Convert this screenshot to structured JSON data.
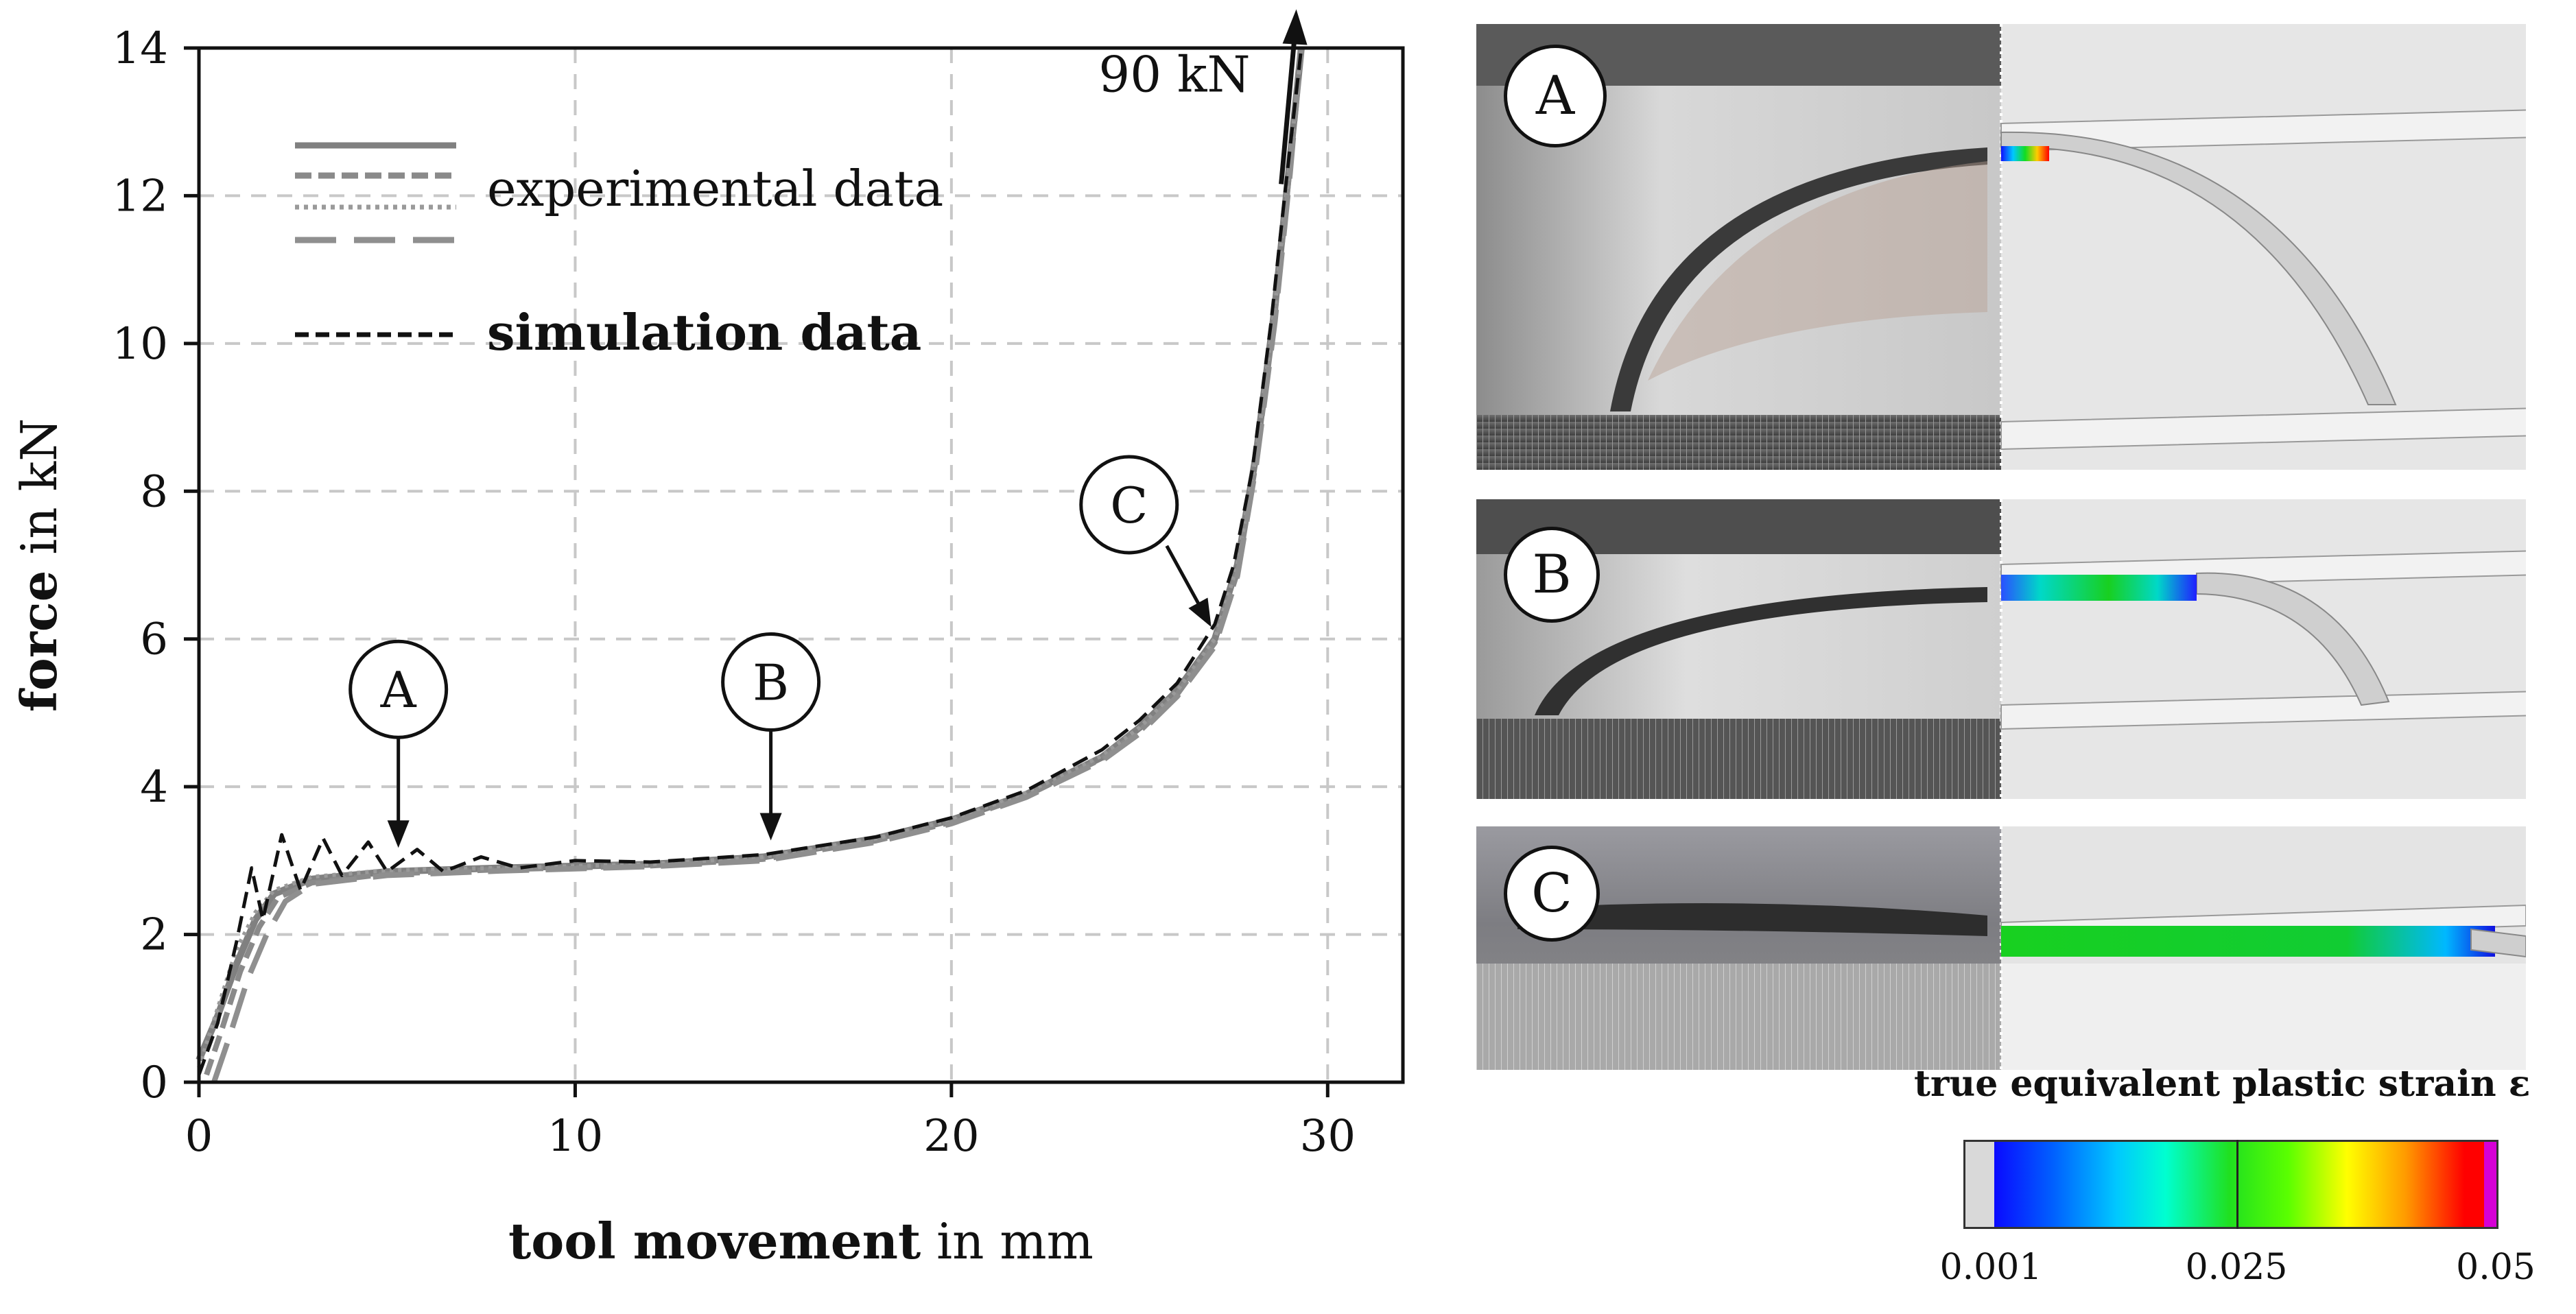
{
  "chart_data": {
    "type": "line",
    "xlabel_bold": "tool movement",
    "xlabel_rest": " in mm",
    "ylabel_bold": "force",
    "ylabel_rest": " in kN",
    "xlim": [
      0,
      32
    ],
    "ylim": [
      0,
      14
    ],
    "x_ticks": [
      0,
      10,
      20,
      30
    ],
    "y_ticks": [
      0,
      2,
      4,
      6,
      8,
      10,
      12,
      14
    ],
    "grid": true,
    "legend": {
      "placement": "top-left",
      "experimental_label": "experimental data",
      "simulation_label": "simulation data"
    },
    "series": [
      {
        "name": "experimental data",
        "style": "solid",
        "color": "#808080",
        "points": [
          [
            0,
            0.3
          ],
          [
            0.5,
            0.9
          ],
          [
            1,
            1.6
          ],
          [
            1.5,
            2.2
          ],
          [
            2,
            2.55
          ],
          [
            3,
            2.75
          ],
          [
            5,
            2.85
          ],
          [
            8,
            2.9
          ],
          [
            12,
            2.95
          ],
          [
            15,
            3.05
          ],
          [
            18,
            3.3
          ],
          [
            20,
            3.55
          ],
          [
            22,
            3.9
          ],
          [
            24,
            4.4
          ],
          [
            25,
            4.8
          ],
          [
            26,
            5.3
          ],
          [
            27,
            6.0
          ],
          [
            27.6,
            7.0
          ],
          [
            28.1,
            8.5
          ],
          [
            28.6,
            10.5
          ],
          [
            29,
            12.5
          ],
          [
            29.3,
            14.0
          ]
        ]
      },
      {
        "name": "experimental data",
        "style": "dashed",
        "color": "#8a8a8a",
        "points": [
          [
            0.2,
            0.1
          ],
          [
            0.6,
            0.7
          ],
          [
            1.1,
            1.5
          ],
          [
            1.6,
            2.1
          ],
          [
            2.1,
            2.5
          ],
          [
            3,
            2.7
          ],
          [
            5,
            2.82
          ],
          [
            8,
            2.88
          ],
          [
            12,
            2.93
          ],
          [
            15,
            3.02
          ],
          [
            18,
            3.27
          ],
          [
            20,
            3.52
          ],
          [
            22,
            3.88
          ],
          [
            24,
            4.38
          ],
          [
            25,
            4.75
          ],
          [
            26,
            5.25
          ],
          [
            27,
            5.95
          ],
          [
            27.6,
            6.9
          ],
          [
            28.1,
            8.4
          ],
          [
            28.6,
            10.4
          ],
          [
            29,
            12.4
          ],
          [
            29.3,
            14.0
          ]
        ]
      },
      {
        "name": "experimental data",
        "style": "dotted",
        "color": "#9a9a9a",
        "points": [
          [
            0,
            0.2
          ],
          [
            0.5,
            1.0
          ],
          [
            1,
            1.8
          ],
          [
            1.5,
            2.3
          ],
          [
            2,
            2.6
          ],
          [
            3,
            2.78
          ],
          [
            5,
            2.87
          ],
          [
            8,
            2.9
          ],
          [
            12,
            2.95
          ],
          [
            15,
            3.05
          ],
          [
            18,
            3.3
          ],
          [
            20,
            3.55
          ],
          [
            22,
            3.92
          ],
          [
            24,
            4.42
          ],
          [
            25,
            4.8
          ],
          [
            26,
            5.3
          ],
          [
            27,
            6.0
          ],
          [
            27.6,
            7.0
          ],
          [
            28.1,
            8.5
          ],
          [
            28.6,
            10.5
          ],
          [
            29,
            12.5
          ],
          [
            29.3,
            14.0
          ]
        ]
      },
      {
        "name": "experimental data",
        "style": "longdash",
        "color": "#8f8f8f",
        "points": [
          [
            0.4,
            0.0
          ],
          [
            0.8,
            0.6
          ],
          [
            1.3,
            1.4
          ],
          [
            1.8,
            2.0
          ],
          [
            2.3,
            2.45
          ],
          [
            3,
            2.68
          ],
          [
            5,
            2.8
          ],
          [
            8,
            2.86
          ],
          [
            12,
            2.92
          ],
          [
            15,
            3.0
          ],
          [
            18,
            3.25
          ],
          [
            20,
            3.5
          ],
          [
            22,
            3.86
          ],
          [
            24,
            4.35
          ],
          [
            25,
            4.72
          ],
          [
            26,
            5.22
          ],
          [
            27,
            5.9
          ],
          [
            27.6,
            6.85
          ],
          [
            28.1,
            8.35
          ],
          [
            28.6,
            10.3
          ],
          [
            29,
            12.3
          ],
          [
            29.3,
            14.0
          ]
        ]
      },
      {
        "name": "simulation data",
        "style": "dashed",
        "color": "#111111",
        "points": [
          [
            0,
            0.1
          ],
          [
            0.5,
            0.8
          ],
          [
            1,
            1.9
          ],
          [
            1.4,
            2.9
          ],
          [
            1.7,
            2.2
          ],
          [
            2.2,
            3.35
          ],
          [
            2.7,
            2.6
          ],
          [
            3.3,
            3.3
          ],
          [
            3.8,
            2.8
          ],
          [
            4.5,
            3.25
          ],
          [
            5,
            2.85
          ],
          [
            5.8,
            3.15
          ],
          [
            6.5,
            2.85
          ],
          [
            7.5,
            3.05
          ],
          [
            8.5,
            2.9
          ],
          [
            10,
            3.0
          ],
          [
            12,
            2.98
          ],
          [
            15,
            3.08
          ],
          [
            18,
            3.32
          ],
          [
            20,
            3.58
          ],
          [
            22,
            3.95
          ],
          [
            24,
            4.5
          ],
          [
            25,
            4.9
          ],
          [
            26,
            5.4
          ],
          [
            27,
            6.2
          ],
          [
            27.5,
            7.0
          ],
          [
            28,
            8.3
          ],
          [
            28.5,
            10.3
          ],
          [
            28.9,
            12.2
          ],
          [
            29.3,
            14.0
          ]
        ]
      }
    ],
    "markers": [
      {
        "label": "A",
        "x": 5.3,
        "y": 2.95
      },
      {
        "label": "B",
        "x": 15.2,
        "y": 3.05
      },
      {
        "label": "C",
        "x": 27.0,
        "y": 6.1
      }
    ],
    "annotation": {
      "text": "90 kN",
      "x": 28.4,
      "y": 12.9
    }
  },
  "panels": [
    {
      "label": "A"
    },
    {
      "label": "B"
    },
    {
      "label": "C"
    }
  ],
  "colorbar": {
    "title": "true equivalent  plastic strain ε",
    "min_label": "0.001",
    "mid_label": "0.025",
    "max_label": "0.05"
  }
}
